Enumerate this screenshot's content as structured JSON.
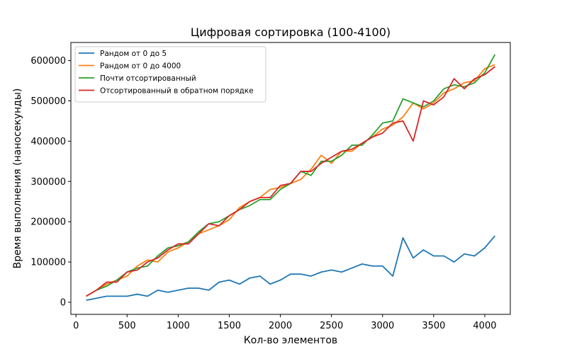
{
  "chart_data": {
    "type": "line",
    "title": "Цифровая сортировка (100-4100)",
    "xlabel": "Кол-во элементов",
    "ylabel": "Время выполнения (наносекунды)",
    "xlim": [
      -50,
      4250
    ],
    "ylim": [
      -30000,
      645000
    ],
    "xticks": [
      0,
      500,
      1000,
      1500,
      2000,
      2500,
      3000,
      3500,
      4000
    ],
    "yticks": [
      0,
      100000,
      200000,
      300000,
      400000,
      500000,
      600000
    ],
    "legend_position": "top-left",
    "grid": false,
    "x": [
      100,
      200,
      300,
      400,
      500,
      600,
      700,
      800,
      900,
      1000,
      1100,
      1200,
      1300,
      1400,
      1500,
      1600,
      1700,
      1800,
      1900,
      2000,
      2100,
      2200,
      2300,
      2400,
      2500,
      2600,
      2700,
      2800,
      2900,
      3000,
      3100,
      3200,
      3300,
      3400,
      3500,
      3600,
      3700,
      3800,
      3900,
      4000,
      4100
    ],
    "series": [
      {
        "name": "Рандом от 0 до 5",
        "color": "#1f77b4",
        "values": [
          5000,
          10000,
          15000,
          15000,
          15000,
          20000,
          15000,
          30000,
          25000,
          30000,
          35000,
          35000,
          30000,
          50000,
          55000,
          45000,
          60000,
          65000,
          45000,
          55000,
          70000,
          70000,
          65000,
          75000,
          80000,
          75000,
          85000,
          95000,
          90000,
          90000,
          65000,
          160000,
          110000,
          130000,
          115000,
          115000,
          100000,
          120000,
          115000,
          135000,
          165000
        ]
      },
      {
        "name": "Рандом от 0 до 4000",
        "color": "#ff7f0e",
        "values": [
          15000,
          30000,
          45000,
          55000,
          65000,
          90000,
          105000,
          100000,
          125000,
          135000,
          150000,
          170000,
          180000,
          190000,
          205000,
          235000,
          250000,
          260000,
          280000,
          285000,
          295000,
          305000,
          330000,
          365000,
          345000,
          375000,
          375000,
          395000,
          410000,
          430000,
          440000,
          460000,
          495000,
          480000,
          495000,
          520000,
          530000,
          545000,
          550000,
          580000,
          590000
        ]
      },
      {
        "name": "Почти отсортированный",
        "color": "#2ca02c",
        "values": [
          15000,
          30000,
          40000,
          55000,
          75000,
          85000,
          90000,
          115000,
          135000,
          140000,
          150000,
          175000,
          195000,
          200000,
          215000,
          230000,
          240000,
          255000,
          255000,
          280000,
          295000,
          325000,
          315000,
          350000,
          350000,
          365000,
          390000,
          390000,
          415000,
          445000,
          450000,
          505000,
          495000,
          485000,
          500000,
          530000,
          540000,
          535000,
          545000,
          570000,
          615000
        ]
      },
      {
        "name": "Отсортированный в обратном порядке",
        "color": "#d62728",
        "values": [
          15000,
          30000,
          50000,
          50000,
          75000,
          80000,
          100000,
          110000,
          130000,
          145000,
          145000,
          170000,
          195000,
          190000,
          215000,
          230000,
          250000,
          260000,
          260000,
          290000,
          295000,
          325000,
          325000,
          345000,
          360000,
          375000,
          380000,
          395000,
          410000,
          420000,
          445000,
          450000,
          400000,
          500000,
          490000,
          510000,
          555000,
          530000,
          555000,
          565000,
          585000
        ]
      }
    ]
  }
}
